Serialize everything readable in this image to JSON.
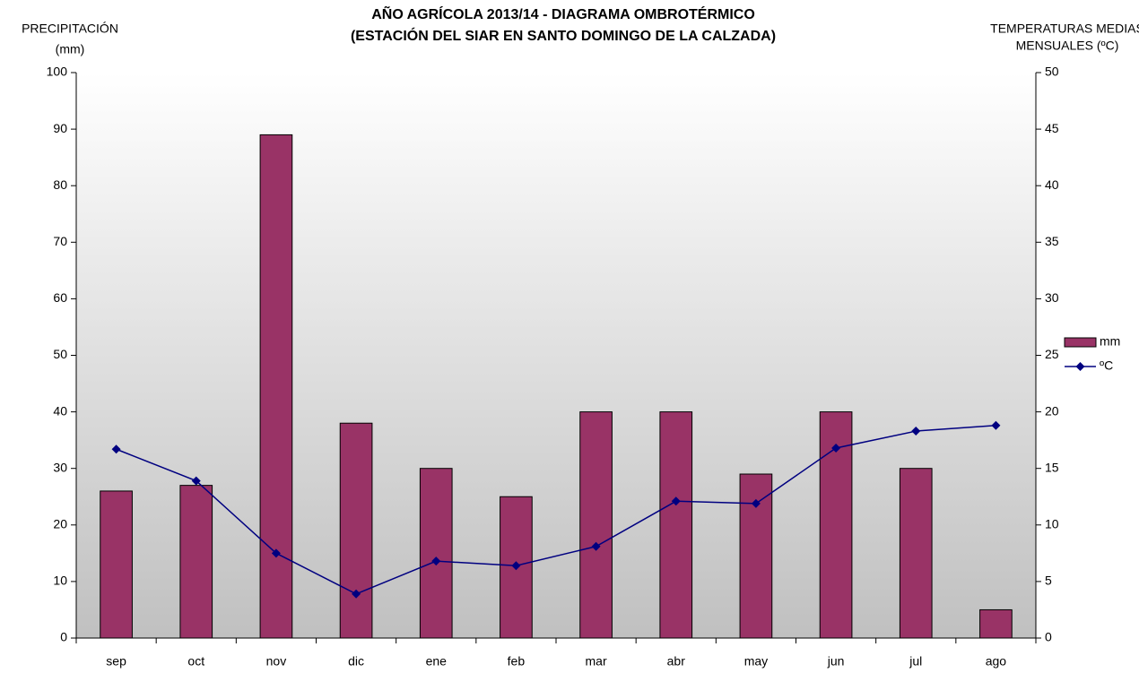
{
  "chart_data": {
    "type": "bar",
    "title": [
      "AÑO AGRÍCOLA 2013/14 - DIAGRAMA OMBROTÉRMICO",
      "(ESTACIÓN DEL SIAR EN  SANTO DOMINGO DE LA CALZADA)"
    ],
    "y_label": [
      "PRECIPITACIÓN",
      "(mm)"
    ],
    "y2_label": [
      "TEMPERATURAS MEDIAS",
      "MENSUALES  (ºC)"
    ],
    "categories": [
      "sep",
      "oct",
      "nov",
      "dic",
      "ene",
      "feb",
      "mar",
      "abr",
      "may",
      "jun",
      "jul",
      "ago"
    ],
    "series": [
      {
        "name": "mm",
        "type": "bar",
        "color": "#993366",
        "values": [
          26,
          27,
          89,
          38,
          30,
          25,
          40,
          40,
          29,
          40,
          30,
          5
        ]
      },
      {
        "name": "ºC",
        "type": "line",
        "axis": "y2",
        "color": "#000080",
        "values": [
          16.7,
          13.9,
          7.5,
          3.9,
          6.8,
          6.4,
          8.1,
          12.1,
          11.9,
          16.8,
          18.3,
          18.8
        ]
      }
    ],
    "ylim": [
      0,
      100
    ],
    "yticks": [
      0,
      10,
      20,
      30,
      40,
      50,
      60,
      70,
      80,
      90,
      100
    ],
    "y2lim": [
      0,
      50
    ],
    "y2ticks": [
      0,
      5,
      10,
      15,
      20,
      25,
      30,
      35,
      40,
      45,
      50
    ],
    "legend": "right"
  }
}
